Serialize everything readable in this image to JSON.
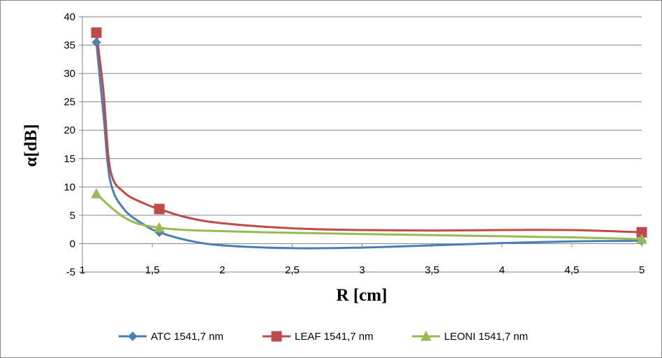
{
  "chart_data": {
    "type": "line",
    "title": "",
    "xlabel": "R [cm]",
    "ylabel": "α[dB]",
    "xlim": [
      1,
      5
    ],
    "ylim": [
      -5,
      40
    ],
    "x_ticks": [
      "1",
      "1,5",
      "2",
      "2,5",
      "3",
      "3,5",
      "4",
      "4,5",
      "5"
    ],
    "y_ticks": [
      "-5",
      "0",
      "5",
      "10",
      "15",
      "20",
      "25",
      "30",
      "35",
      "40"
    ],
    "grid": true,
    "legend_position": "bottom",
    "series": [
      {
        "name": "ATC 1541,7 nm",
        "color": "#4a7ebb",
        "marker": "diamond",
        "points": [
          [
            1.1,
            35.5
          ],
          [
            1.55,
            2.0
          ],
          [
            5.0,
            0.5
          ]
        ],
        "curve": [
          [
            1.1,
            35.5
          ],
          [
            1.15,
            23.0
          ],
          [
            1.2,
            11.0
          ],
          [
            1.3,
            6.0
          ],
          [
            1.45,
            3.2
          ],
          [
            1.55,
            2.0
          ],
          [
            1.75,
            0.6
          ],
          [
            2.0,
            -0.3
          ],
          [
            2.5,
            -0.8
          ],
          [
            3.0,
            -0.7
          ],
          [
            3.5,
            -0.3
          ],
          [
            4.0,
            0.1
          ],
          [
            4.5,
            0.4
          ],
          [
            5.0,
            0.5
          ]
        ]
      },
      {
        "name": "LEAF 1541,7 nm",
        "color": "#be4b48",
        "marker": "square",
        "points": [
          [
            1.1,
            37.2
          ],
          [
            1.55,
            6.1
          ],
          [
            5.0,
            2.0
          ]
        ],
        "curve": [
          [
            1.1,
            37.2
          ],
          [
            1.15,
            27.0
          ],
          [
            1.2,
            13.0
          ],
          [
            1.3,
            9.0
          ],
          [
            1.45,
            7.0
          ],
          [
            1.55,
            6.1
          ],
          [
            1.75,
            4.6
          ],
          [
            2.0,
            3.6
          ],
          [
            2.5,
            2.7
          ],
          [
            3.0,
            2.4
          ],
          [
            3.5,
            2.3
          ],
          [
            4.0,
            2.4
          ],
          [
            4.5,
            2.4
          ],
          [
            5.0,
            2.0
          ]
        ]
      },
      {
        "name": "LEONI 1541,7 nm",
        "color": "#98b954",
        "marker": "triangle",
        "points": [
          [
            1.1,
            8.8
          ],
          [
            1.55,
            2.8
          ],
          [
            5.0,
            0.8
          ]
        ],
        "curve": [
          [
            1.1,
            8.8
          ],
          [
            1.2,
            6.5
          ],
          [
            1.3,
            4.6
          ],
          [
            1.4,
            3.5
          ],
          [
            1.55,
            2.8
          ],
          [
            1.75,
            2.4
          ],
          [
            2.0,
            2.2
          ],
          [
            2.5,
            1.9
          ],
          [
            3.0,
            1.7
          ],
          [
            3.5,
            1.5
          ],
          [
            4.0,
            1.3
          ],
          [
            4.5,
            1.1
          ],
          [
            5.0,
            0.8
          ]
        ]
      }
    ]
  }
}
